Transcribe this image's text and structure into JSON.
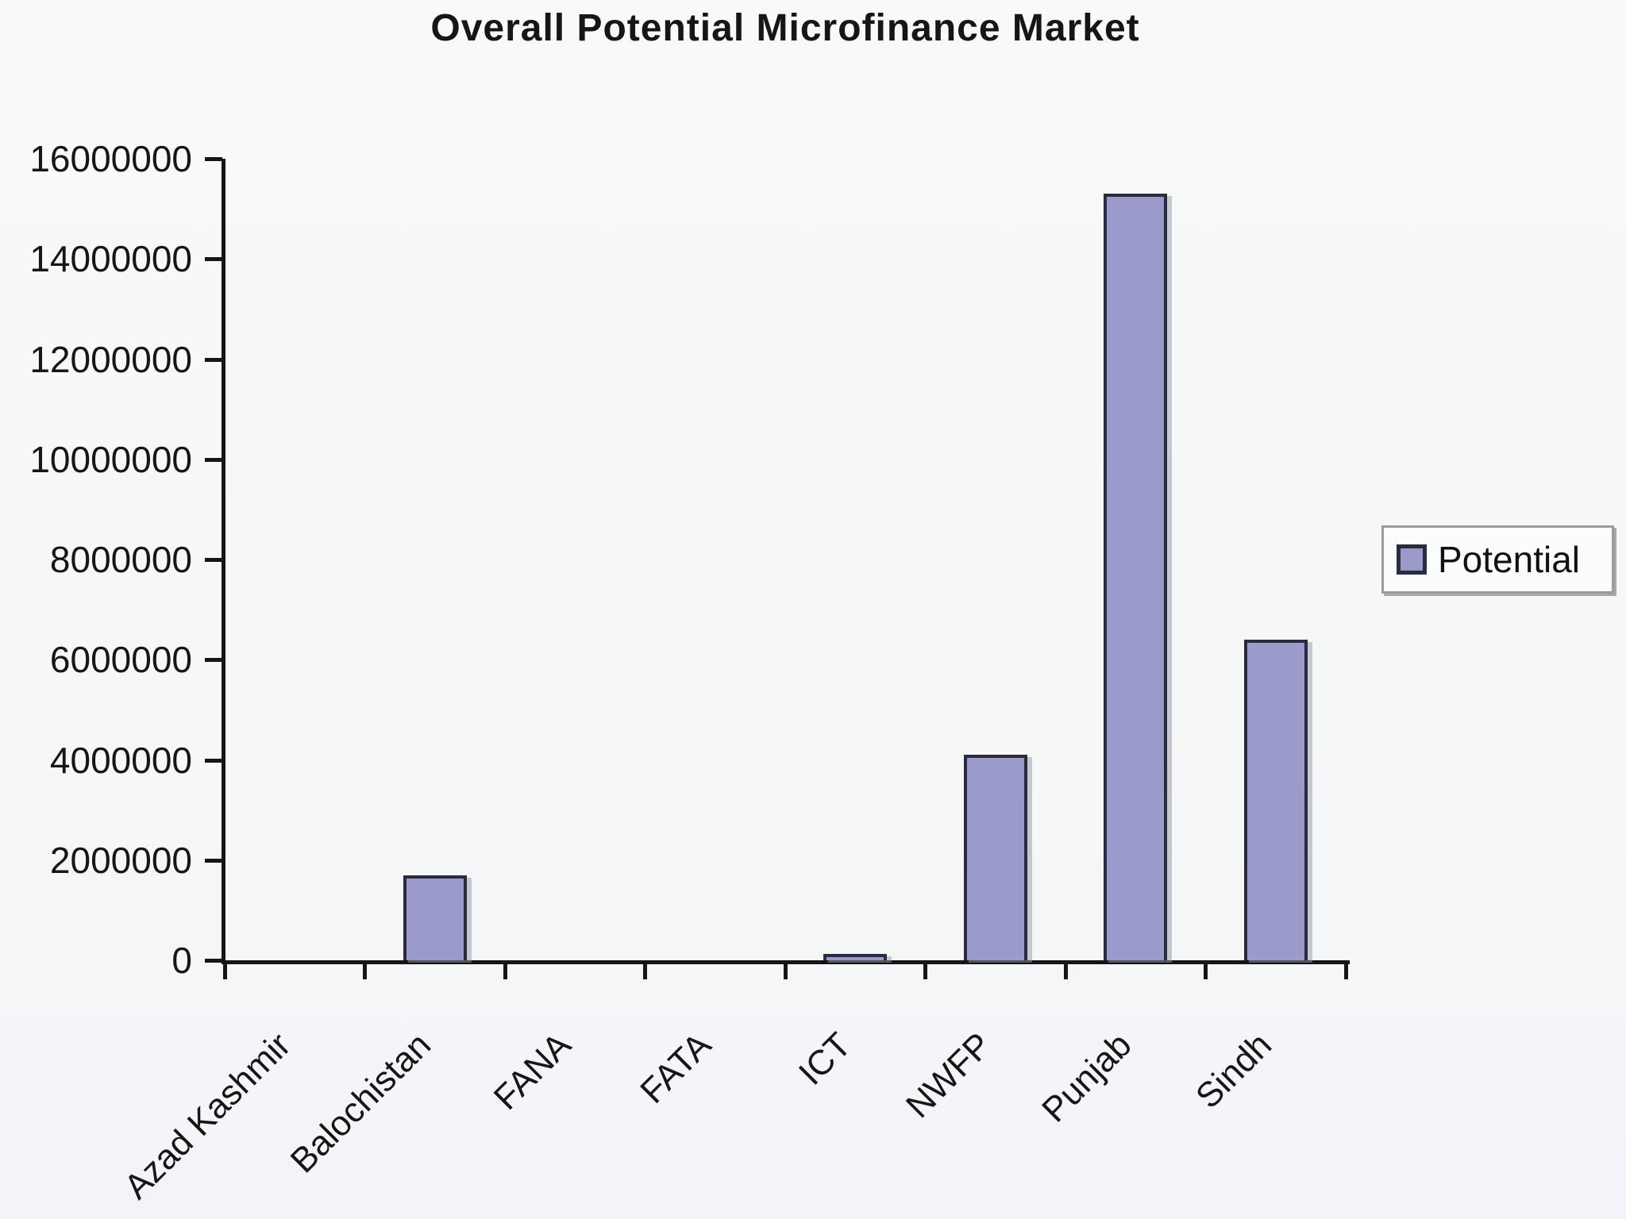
{
  "chart_data": {
    "type": "bar",
    "title": "Overall Potential Microfinance Market",
    "categories": [
      "Azad Kashmir",
      "Balochistan",
      "FANA",
      "FATA",
      "ICT",
      "NWFP",
      "Punjab",
      "Sindh"
    ],
    "series": [
      {
        "name": "Potential",
        "values": [
          0,
          1700000,
          0,
          0,
          100000,
          4100000,
          15300000,
          6400000
        ]
      }
    ],
    "xlabel": "",
    "ylabel": "",
    "ylim": [
      0,
      16000000
    ],
    "yticks": [
      0,
      2000000,
      4000000,
      6000000,
      8000000,
      10000000,
      12000000,
      14000000,
      16000000
    ],
    "grid": false,
    "legend_position": "right"
  },
  "legend": {
    "label": "Potential"
  },
  "colors": {
    "bar_fill": "#9a9bca",
    "bar_border": "#2b2b3f",
    "axis": "#161616",
    "background": "#f6f8f9",
    "legend_border": "#9b9b9b"
  }
}
